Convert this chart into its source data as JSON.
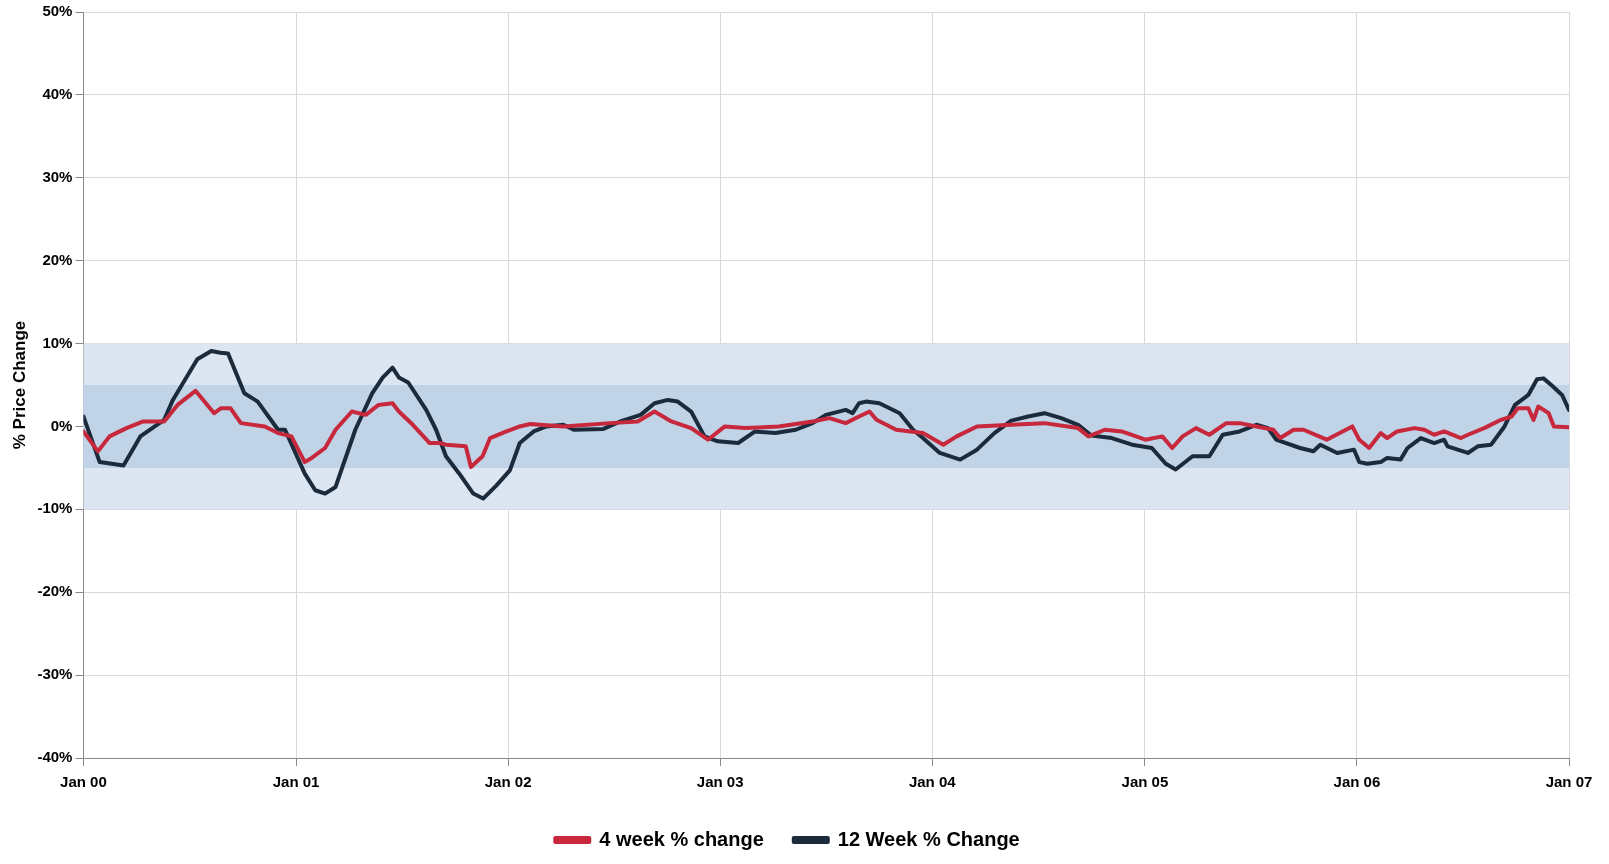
{
  "chart_data": {
    "type": "line",
    "ylabel": "% Price Change",
    "xlim": [
      "2000-01-01",
      "2007-01-01"
    ],
    "xticks": [
      {
        "value": "2000-01-01",
        "label": "Jan 00"
      },
      {
        "value": "2001-01-01",
        "label": "Jan 01"
      },
      {
        "value": "2002-01-01",
        "label": "Jan 02"
      },
      {
        "value": "2003-01-01",
        "label": "Jan 03"
      },
      {
        "value": "2004-01-01",
        "label": "Jan 04"
      },
      {
        "value": "2005-01-01",
        "label": "Jan 05"
      },
      {
        "value": "2006-01-01",
        "label": "Jan 06"
      },
      {
        "value": "2007-01-01",
        "label": "Jan 07"
      }
    ],
    "ylim": [
      -40,
      50
    ],
    "yticks": [
      {
        "value": -40,
        "label": "-40%"
      },
      {
        "value": -30,
        "label": "-30%"
      },
      {
        "value": -20,
        "label": "-20%"
      },
      {
        "value": -10,
        "label": "-10%"
      },
      {
        "value": 0,
        "label": "0%"
      },
      {
        "value": 10,
        "label": "10%"
      },
      {
        "value": 20,
        "label": "20%"
      },
      {
        "value": 30,
        "label": "30%"
      },
      {
        "value": 40,
        "label": "40%"
      },
      {
        "value": 50,
        "label": "50%"
      }
    ],
    "grid": true,
    "legend": "bottom",
    "marker": "none",
    "line_style": "solid",
    "bands": [
      {
        "axis": "y",
        "from": -10,
        "to": 10,
        "color": "#dce6f2"
      },
      {
        "axis": "y",
        "from": -5,
        "to": 5,
        "color": "#c0d3e7"
      }
    ],
    "series": [
      {
        "name": "4 week % change",
        "color": "#c8283c",
        "x": [
          "2000-01-01",
          "2000-01-26",
          "2000-02-15",
          "2000-03-15",
          "2000-04-13",
          "2000-05-19",
          "2000-06-11",
          "2000-07-12",
          "2000-08-13",
          "2000-08-25",
          "2000-09-10",
          "2000-09-28",
          "2000-11-08",
          "2000-12-01",
          "2000-12-24",
          "2001-01-16",
          "2001-01-28",
          "2001-02-20",
          "2001-03-10",
          "2001-04-07",
          "2001-05-01",
          "2001-05-23",
          "2001-06-16",
          "2001-06-27",
          "2001-07-21",
          "2001-08-19",
          "2001-09-05",
          "2001-09-16",
          "2001-10-20",
          "2001-10-29",
          "2001-11-18",
          "2001-12-01",
          "2001-12-29",
          "2002-01-21",
          "2002-02-08",
          "2002-04-06",
          "2002-06-26",
          "2002-08-12",
          "2002-09-10",
          "2002-10-09",
          "2002-11-12",
          "2002-12-11",
          "2003-01-09",
          "2003-02-13",
          "2003-04-12",
          "2003-06-09",
          "2003-07-08",
          "2003-08-05",
          "2003-08-28",
          "2003-09-15",
          "2003-09-27",
          "2003-10-31",
          "2003-12-16",
          "2004-01-20",
          "2004-02-12",
          "2004-03-18",
          "2004-05-16",
          "2004-07-12",
          "2004-09-08",
          "2004-09-26",
          "2004-10-24",
          "2004-11-22",
          "2005-01-02",
          "2005-01-31",
          "2005-02-17",
          "2005-03-07",
          "2005-03-30",
          "2005-04-22",
          "2005-05-21",
          "2005-06-13",
          "2005-07-12",
          "2005-08-10",
          "2005-08-22",
          "2005-09-14",
          "2005-10-01",
          "2005-11-10",
          "2005-12-24",
          "2006-01-05",
          "2006-01-22",
          "2006-02-11",
          "2006-02-22",
          "2006-03-11",
          "2006-04-10",
          "2006-04-27",
          "2006-05-14",
          "2006-05-31",
          "2006-06-29",
          "2006-07-11",
          "2006-08-08",
          "2006-09-06",
          "2006-09-24",
          "2006-10-05",
          "2006-10-23",
          "2006-11-01",
          "2006-11-09",
          "2006-11-27",
          "2006-12-06",
          "2007-01-01"
        ],
        "values": [
          -0.6,
          -3.0,
          -1.2,
          -0.2,
          0.6,
          0.6,
          2.6,
          4.3,
          1.6,
          2.2,
          2.2,
          0.4,
          0,
          -0.8,
          -1.2,
          -4.3,
          -3.8,
          -2.6,
          -0.4,
          1.8,
          1.4,
          2.6,
          2.8,
          1.8,
          0.2,
          -2.0,
          -2.0,
          -2.2,
          -2.4,
          -4.9,
          -3.6,
          -1.4,
          -0.6,
          0,
          0.3,
          0,
          0.4,
          0.6,
          1.8,
          0.6,
          -0.2,
          -1.6,
          0,
          -0.2,
          0,
          0.6,
          1.0,
          0.4,
          1.2,
          1.8,
          0.8,
          -0.4,
          -0.8,
          -2.2,
          -1.2,
          0,
          0.2,
          0.4,
          -0.2,
          -1.2,
          -0.4,
          -0.6,
          -1.6,
          -1.2,
          -2.6,
          -1.2,
          -0.2,
          -1.0,
          0.4,
          0.4,
          0,
          -0.4,
          -1.4,
          -0.4,
          -0.4,
          -1.6,
          0,
          -1.6,
          -2.6,
          -0.8,
          -1.4,
          -0.6,
          -0.2,
          -0.4,
          -1.0,
          -0.6,
          -1.4,
          -1.0,
          -0.2,
          0.8,
          1.2,
          2.2,
          2.2,
          0.8,
          2.4,
          1.6,
          0,
          -0.1
        ]
      },
      {
        "name": "12 Week % Change",
        "color": "#1c2b3c",
        "x": [
          "2000-01-01",
          "2000-01-29",
          "2000-03-10",
          "2000-04-08",
          "2000-05-19",
          "2000-06-03",
          "2000-07-15",
          "2000-08-08",
          "2000-08-24",
          "2000-09-06",
          "2000-10-04",
          "2000-10-27",
          "2000-12-01",
          "2000-12-13",
          "2001-01-16",
          "2001-02-03",
          "2001-02-20",
          "2001-03-10",
          "2001-04-13",
          "2001-05-12",
          "2001-05-30",
          "2001-06-16",
          "2001-06-27",
          "2001-07-13",
          "2001-08-13",
          "2001-08-30",
          "2001-09-16",
          "2001-10-09",
          "2001-11-02",
          "2001-11-19",
          "2001-12-12",
          "2002-01-04",
          "2002-01-21",
          "2002-02-14",
          "2002-03-08",
          "2002-04-06",
          "2002-04-24",
          "2002-06-14",
          "2002-07-13",
          "2002-08-17",
          "2002-09-10",
          "2002-10-03",
          "2002-10-20",
          "2002-11-12",
          "2002-12-05",
          "2002-12-28",
          "2003-02-01",
          "2003-03-02",
          "2003-04-06",
          "2003-05-11",
          "2003-06-09",
          "2003-07-02",
          "2003-08-05",
          "2003-08-17",
          "2003-08-28",
          "2003-09-09",
          "2003-10-02",
          "2003-11-06",
          "2003-11-29",
          "2003-12-16",
          "2004-01-14",
          "2004-02-18",
          "2004-03-18",
          "2004-04-17",
          "2004-05-16",
          "2004-06-14",
          "2004-07-12",
          "2004-08-10",
          "2004-09-08",
          "2004-10-01",
          "2004-11-05",
          "2004-12-10",
          "2005-01-13",
          "2005-02-06",
          "2005-02-23",
          "2005-03-24",
          "2005-04-22",
          "2005-05-15",
          "2005-06-13",
          "2005-07-12",
          "2005-08-01",
          "2005-08-15",
          "2005-09-25",
          "2005-10-18",
          "2005-10-30",
          "2005-11-28",
          "2005-12-27",
          "2006-01-05",
          "2006-01-19",
          "2006-02-11",
          "2006-02-22",
          "2006-03-17",
          "2006-03-29",
          "2006-04-21",
          "2006-05-14",
          "2006-05-31",
          "2006-06-06",
          "2006-07-11",
          "2006-07-28",
          "2006-08-20",
          "2006-09-12",
          "2006-09-30",
          "2006-10-23",
          "2006-11-07",
          "2006-11-18",
          "2006-12-03",
          "2006-12-20",
          "2007-01-01"
        ],
        "values": [
          1.2,
          -4.3,
          -4.7,
          -1.2,
          0.8,
          3.2,
          8.1,
          9.1,
          8.9,
          8.8,
          4.0,
          3.0,
          -0.4,
          -0.4,
          -5.7,
          -7.7,
          -8.1,
          -7.3,
          -0.4,
          4.0,
          5.9,
          7.1,
          5.9,
          5.3,
          2.0,
          -0.4,
          -3.6,
          -5.7,
          -8.1,
          -8.7,
          -7.1,
          -5.3,
          -2.0,
          -0.6,
          0,
          0.2,
          -0.4,
          -0.3,
          0.6,
          1.4,
          2.8,
          3.2,
          3.0,
          1.8,
          -1.2,
          -1.8,
          -2.0,
          -0.6,
          -0.8,
          -0.4,
          0.4,
          1.4,
          2.0,
          1.6,
          2.8,
          3.0,
          2.8,
          1.6,
          -0.4,
          -1.4,
          -3.2,
          -4.0,
          -2.8,
          -0.8,
          0.7,
          1.2,
          1.6,
          1.0,
          0.2,
          -1.1,
          -1.4,
          -2.2,
          -2.6,
          -4.5,
          -5.2,
          -3.6,
          -3.6,
          -1.0,
          -0.6,
          0.2,
          -0.2,
          -1.6,
          -2.6,
          -3.0,
          -2.2,
          -3.2,
          -2.8,
          -4.3,
          -4.5,
          -4.3,
          -3.8,
          -4.0,
          -2.6,
          -1.4,
          -2.0,
          -1.6,
          -2.4,
          -3.2,
          -2.4,
          -2.2,
          0,
          2.6,
          3.8,
          5.7,
          5.8,
          4.9,
          3.8,
          2.0
        ]
      }
    ]
  }
}
